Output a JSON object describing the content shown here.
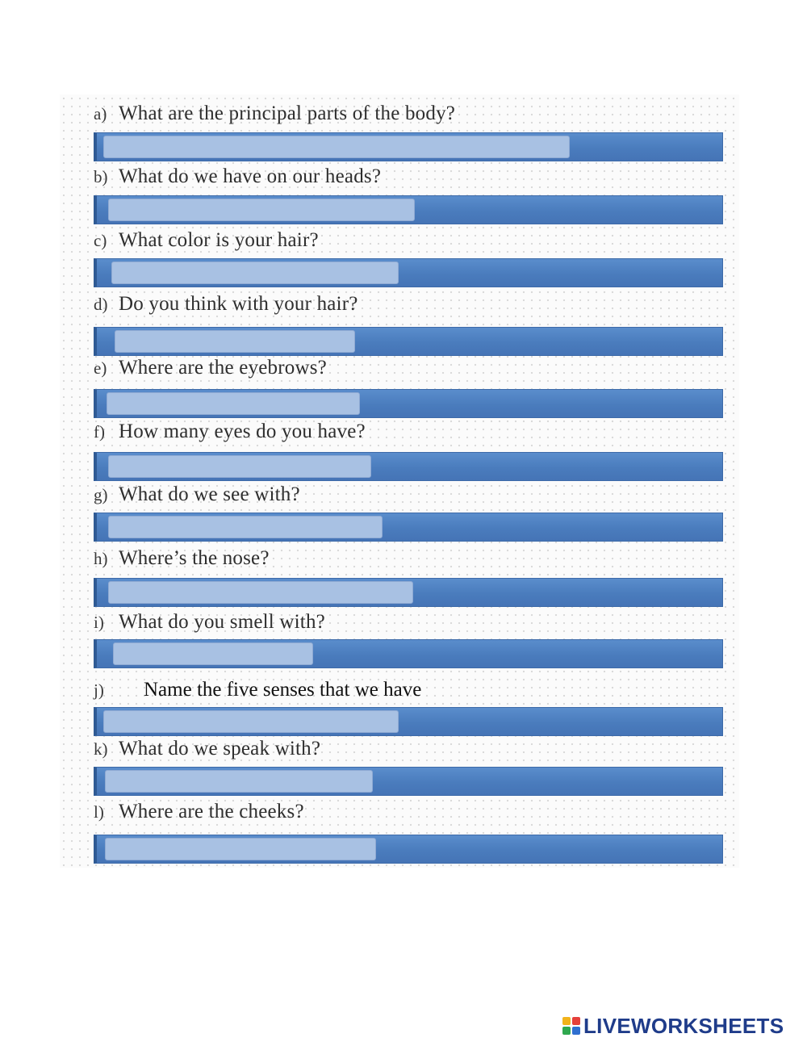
{
  "questions": [
    {
      "letter": "a)",
      "text": "What are the principal parts of the body?",
      "answer": ""
    },
    {
      "letter": "b)",
      "text": "What do we have on our heads?",
      "answer": ""
    },
    {
      "letter": "c)",
      "text": "What color is your hair?",
      "answer": ""
    },
    {
      "letter": "d)",
      "text": "Do you think with your hair?",
      "answer": ""
    },
    {
      "letter": "e)",
      "text": "Where are the eyebrows?",
      "answer": ""
    },
    {
      "letter": "f)",
      "text": "How many eyes do you have?",
      "answer": ""
    },
    {
      "letter": "g)",
      "text": "What do we see with?",
      "answer": ""
    },
    {
      "letter": "h)",
      "text": "Where’s the nose?",
      "answer": ""
    },
    {
      "letter": "i)",
      "text": "What do you smell with?",
      "answer": ""
    },
    {
      "letter": "j)",
      "text": "Name the five senses that we have",
      "answer": ""
    },
    {
      "letter": "k)",
      "text": "What do we speak with?",
      "answer": ""
    },
    {
      "letter": "l)",
      "text": "Where are the cheeks?",
      "answer": ""
    }
  ],
  "brand": {
    "name": "LIVEWORKSHEETS",
    "logo_colors": [
      "#f2b31b",
      "#e5403a",
      "#2fa84f",
      "#2f6fd0"
    ],
    "text_color": "#1f3c8a"
  },
  "colors": {
    "bar_blue": "#4a7cbd",
    "answer_box": "#a8c1e3"
  }
}
